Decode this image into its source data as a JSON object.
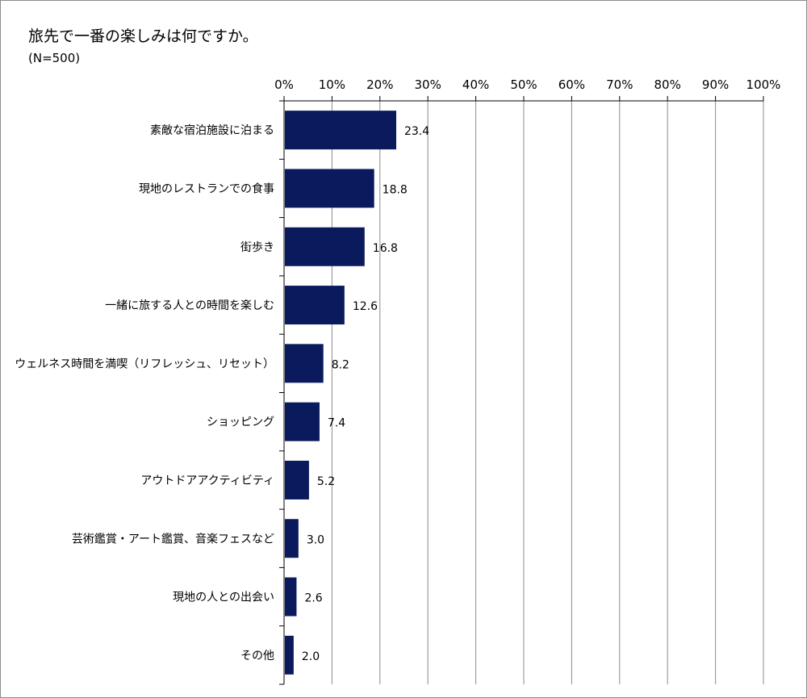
{
  "chart_data": {
    "type": "bar",
    "orientation": "horizontal",
    "title": "旅先で一番の楽しみは何ですか。",
    "subtitle": "(N=500)",
    "categories": [
      "素敵な宿泊施設に泊まる",
      "現地のレストランでの食事",
      "街歩き",
      "一緒に旅する人との時間を楽しむ",
      "ウェルネス時間を満喫（リフレッシュ、リセット）",
      "ショッピング",
      "アウトドアアクティビティ",
      "芸術鑑賞・アート鑑賞、音楽フェスなど",
      "現地の人との出会い",
      "その他"
    ],
    "values": [
      23.4,
      18.8,
      16.8,
      12.6,
      8.2,
      7.4,
      5.2,
      3.0,
      2.6,
      2.0
    ],
    "value_labels": [
      "23.4",
      "18.8",
      "16.8",
      "12.6",
      "8.2",
      "7.4",
      "5.2",
      "3.0",
      "2.6",
      "2.0"
    ],
    "xlim": [
      0,
      100
    ],
    "x_ticks": [
      "0%",
      "10%",
      "20%",
      "30%",
      "40%",
      "50%",
      "60%",
      "70%",
      "80%",
      "90%",
      "100%"
    ],
    "x_tick_values": [
      0,
      10,
      20,
      30,
      40,
      50,
      60,
      70,
      80,
      90,
      100
    ],
    "x_axis_position": "top",
    "grid": true,
    "legend": "none",
    "bar_color": "#0a1a5c",
    "grid_color": "#8c8c8c",
    "axis_color": "#000000",
    "background": "#ffffff"
  }
}
